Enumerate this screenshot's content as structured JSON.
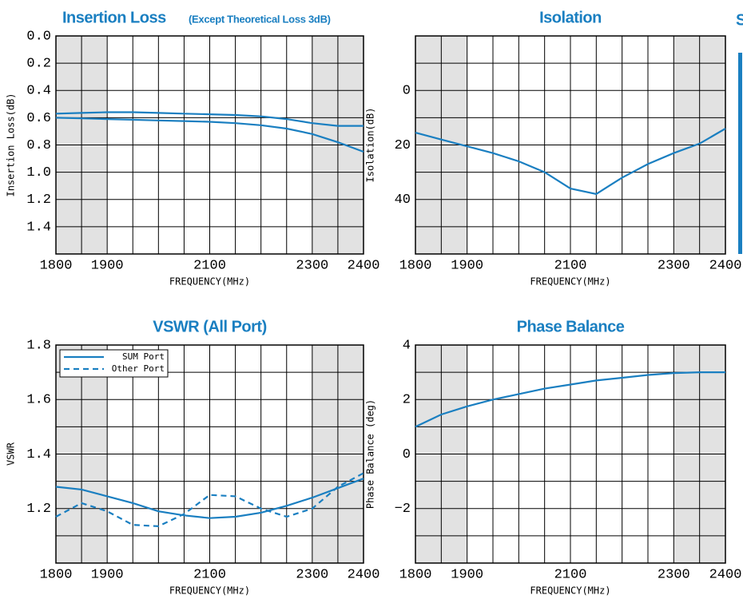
{
  "side_text": "S",
  "chart_data": [
    {
      "type": "line",
      "title": "Insertion Loss",
      "subtitle": "(Except Theoretical Loss 3dB)",
      "xlabel": "FREQUENCY(MHz)",
      "ylabel": "Insertion Loss(dB)",
      "x": [
        1800,
        1850,
        1900,
        1950,
        2000,
        2050,
        2100,
        2150,
        2200,
        2250,
        2300,
        2350,
        2400
      ],
      "series": [
        {
          "color": "#1a7fc1",
          "values": [
            0.57,
            0.565,
            0.56,
            0.56,
            0.565,
            0.57,
            0.575,
            0.58,
            0.59,
            0.61,
            0.64,
            0.66,
            0.66
          ]
        },
        {
          "color": "#1a7fc1",
          "values": [
            0.6,
            0.605,
            0.61,
            0.615,
            0.62,
            0.625,
            0.63,
            0.64,
            0.655,
            0.68,
            0.72,
            0.78,
            0.85
          ]
        }
      ],
      "xlim": [
        1800,
        2400
      ],
      "xticks": [
        1800,
        1900,
        2100,
        2300,
        2400
      ],
      "ylim": [
        1.6,
        0
      ],
      "yticks": [
        {
          "value": 0,
          "label": "0.0"
        },
        0.2,
        0.4,
        0.6,
        0.8,
        {
          "value": 1,
          "label": "1.0"
        },
        1.2,
        1.4
      ],
      "xgrid": [
        1850,
        1900,
        1950,
        2000,
        2050,
        2100,
        2150,
        2200,
        2250,
        2300,
        2350
      ],
      "ygrid": [
        0.2,
        0.4,
        0.6,
        0.8,
        1.0,
        1.2,
        1.4
      ],
      "shaded": [
        [
          1800,
          1900
        ],
        [
          2300,
          2400
        ]
      ]
    },
    {
      "type": "line",
      "title": "Isolation",
      "xlabel": "FREQUENCY(MHz)",
      "ylabel": "Isolation(dB)",
      "x": [
        1800,
        1850,
        1900,
        1950,
        2000,
        2050,
        2100,
        2150,
        2200,
        2250,
        2300,
        2350,
        2400
      ],
      "series": [
        {
          "color": "#1a7fc1",
          "values": [
            15.5,
            18,
            20.5,
            23,
            26,
            30,
            36,
            38,
            32,
            27,
            23,
            19.5,
            14
          ]
        }
      ],
      "xlim": [
        1800,
        2400
      ],
      "xticks": [
        1800,
        1900,
        2100,
        2300,
        2400
      ],
      "ylim": [
        60,
        -20
      ],
      "yticks": [
        0,
        20,
        40
      ],
      "xgrid": [
        1850,
        1900,
        1950,
        2000,
        2050,
        2100,
        2150,
        2200,
        2250,
        2300,
        2350
      ],
      "ygrid": [
        -10,
        0,
        10,
        20,
        30,
        40,
        50
      ],
      "shaded": [
        [
          1800,
          1900
        ],
        [
          2300,
          2400
        ]
      ]
    },
    {
      "type": "line",
      "title": "VSWR (All Port)",
      "xlabel": "FREQUENCY(MHz)",
      "ylabel": "VSWR",
      "x": [
        1800,
        1850,
        1900,
        1950,
        2000,
        2050,
        2100,
        2150,
        2200,
        2250,
        2300,
        2350,
        2400
      ],
      "series": [
        {
          "name": "SUM Port",
          "color": "#1a7fc1",
          "style": "solid",
          "values": [
            1.28,
            1.27,
            1.245,
            1.22,
            1.19,
            1.175,
            1.165,
            1.17,
            1.185,
            1.21,
            1.24,
            1.275,
            1.31
          ]
        },
        {
          "name": "Other Port",
          "color": "#1a7fc1",
          "style": "dashed",
          "values": [
            1.17,
            1.22,
            1.19,
            1.14,
            1.135,
            1.18,
            1.25,
            1.245,
            1.2,
            1.17,
            1.2,
            1.28,
            1.33
          ]
        }
      ],
      "legend": "top-left",
      "xlim": [
        1800,
        2400
      ],
      "xticks": [
        1800,
        1900,
        2100,
        2300,
        2400
      ],
      "ylim": [
        1.0,
        1.8
      ],
      "yticks": [
        1.2,
        1.4,
        1.6,
        1.8
      ],
      "xgrid": [
        1850,
        1900,
        1950,
        2000,
        2050,
        2100,
        2150,
        2200,
        2250,
        2300,
        2350
      ],
      "ygrid": [
        1.1,
        1.2,
        1.3,
        1.4,
        1.5,
        1.6,
        1.7
      ],
      "shaded": [
        [
          1800,
          1900
        ],
        [
          2300,
          2400
        ]
      ]
    },
    {
      "type": "line",
      "title": "Phase Balance",
      "xlabel": "FREQUENCY(MHz)",
      "ylabel": "Phase Balance (deg)",
      "x": [
        1800,
        1850,
        1900,
        1950,
        2000,
        2050,
        2100,
        2150,
        2200,
        2250,
        2300,
        2350,
        2400
      ],
      "series": [
        {
          "color": "#1a7fc1",
          "values": [
            1.0,
            1.45,
            1.75,
            2.0,
            2.2,
            2.4,
            2.55,
            2.7,
            2.8,
            2.9,
            2.97,
            3.0,
            3.0
          ]
        }
      ],
      "xlim": [
        1800,
        2400
      ],
      "xticks": [
        1800,
        1900,
        2100,
        2300,
        2400
      ],
      "ylim": [
        -4,
        4
      ],
      "yticks": [
        {
          "value": -2,
          "label": "−2"
        },
        0,
        2,
        4
      ],
      "xgrid": [
        1850,
        1900,
        1950,
        2000,
        2050,
        2100,
        2150,
        2200,
        2250,
        2300,
        2350
      ],
      "ygrid": [
        -3,
        -2,
        -1,
        0,
        1,
        2,
        3
      ],
      "shaded": [
        [
          1800,
          1900
        ],
        [
          2300,
          2400
        ]
      ]
    }
  ]
}
